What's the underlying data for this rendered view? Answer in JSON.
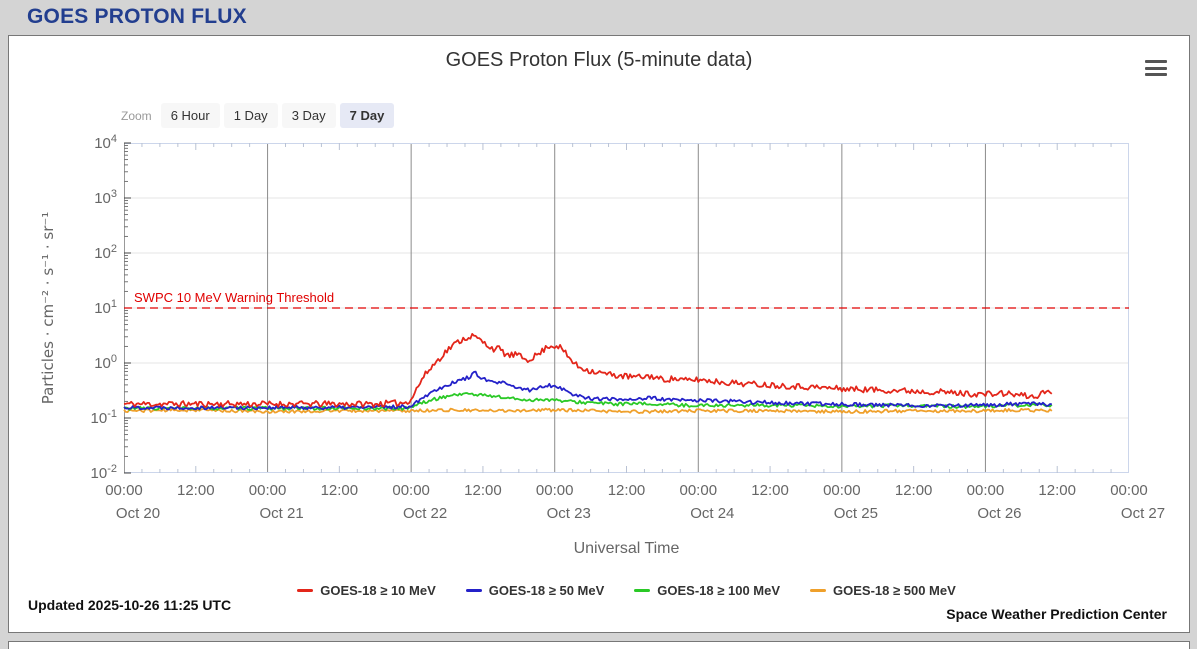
{
  "page": {
    "header_title": "GOES PROTON FLUX"
  },
  "chart": {
    "title": "GOES Proton Flux (5-minute data)",
    "zoom_label": "Zoom",
    "zoom_buttons": [
      {
        "label": "6 Hour",
        "selected": false
      },
      {
        "label": "1 Day",
        "selected": false
      },
      {
        "label": "3 Day",
        "selected": false
      },
      {
        "label": "7 Day",
        "selected": true
      }
    ],
    "updated": "Updated 2025-10-26 11:25 UTC",
    "credit": "Space Weather Prediction Center"
  },
  "chart_data": {
    "type": "line",
    "title": "GOES Proton Flux (5-minute data)",
    "xlabel": "Universal Time",
    "ylabel": "Particles · cm⁻² · s⁻¹ · sr⁻¹",
    "x_unit": "hours since Oct 20 00:00 UT",
    "x_range_hours": [
      0,
      168
    ],
    "y_log_range": [
      -2,
      4
    ],
    "grid": true,
    "legend_position": "bottom",
    "y_tick_exponents": [
      4,
      3,
      2,
      1,
      0,
      -1,
      -2
    ],
    "x_ticks": [
      {
        "hour": 0,
        "time": "00:00",
        "date": "Oct 20"
      },
      {
        "hour": 12,
        "time": "12:00"
      },
      {
        "hour": 24,
        "time": "00:00",
        "date": "Oct 21"
      },
      {
        "hour": 36,
        "time": "12:00"
      },
      {
        "hour": 48,
        "time": "00:00",
        "date": "Oct 22"
      },
      {
        "hour": 60,
        "time": "12:00"
      },
      {
        "hour": 72,
        "time": "00:00",
        "date": "Oct 23"
      },
      {
        "hour": 84,
        "time": "12:00"
      },
      {
        "hour": 96,
        "time": "00:00",
        "date": "Oct 24"
      },
      {
        "hour": 108,
        "time": "12:00"
      },
      {
        "hour": 120,
        "time": "00:00",
        "date": "Oct 25"
      },
      {
        "hour": 132,
        "time": "12:00"
      },
      {
        "hour": 144,
        "time": "00:00",
        "date": "Oct 26"
      },
      {
        "hour": 156,
        "time": "12:00"
      },
      {
        "hour": 168,
        "time": "00:00",
        "date": "Oct 27"
      }
    ],
    "threshold": {
      "value": 10,
      "label": "SWPC 10 MeV Warning Threshold",
      "color": "#e00000",
      "style": "dashed"
    },
    "series": [
      {
        "name": "GOES-18 ≥ 10 MeV",
        "color": "#e3261a",
        "noise_log10": 0.055,
        "seed": 11,
        "points": [
          [
            0,
            0.18
          ],
          [
            6,
            0.18
          ],
          [
            12,
            0.18
          ],
          [
            18,
            0.18
          ],
          [
            24,
            0.18
          ],
          [
            30,
            0.18
          ],
          [
            36,
            0.18
          ],
          [
            42,
            0.18
          ],
          [
            47,
            0.19
          ],
          [
            48,
            0.22
          ],
          [
            49,
            0.35
          ],
          [
            50,
            0.55
          ],
          [
            51,
            0.75
          ],
          [
            52,
            1.0
          ],
          [
            53,
            1.3
          ],
          [
            54,
            1.7
          ],
          [
            55,
            2.1
          ],
          [
            56,
            2.5
          ],
          [
            57,
            2.8
          ],
          [
            58,
            3.1
          ],
          [
            58.7,
            3.0
          ],
          [
            59.5,
            2.6
          ],
          [
            60.5,
            2.2
          ],
          [
            61.5,
            1.9
          ],
          [
            62,
            1.75
          ],
          [
            62.7,
            1.85
          ],
          [
            63.5,
            1.5
          ],
          [
            64.5,
            1.35
          ],
          [
            65.5,
            1.45
          ],
          [
            66.5,
            1.25
          ],
          [
            67.5,
            1.15
          ],
          [
            68.5,
            1.3
          ],
          [
            69.5,
            1.5
          ],
          [
            70.3,
            1.8
          ],
          [
            71,
            2.1
          ],
          [
            71.7,
            2.0
          ],
          [
            72.3,
            2.1
          ],
          [
            73,
            1.9
          ],
          [
            74,
            1.4
          ],
          [
            75,
            1.05
          ],
          [
            76,
            0.85
          ],
          [
            78,
            0.72
          ],
          [
            80,
            0.65
          ],
          [
            82,
            0.6
          ],
          [
            84,
            0.57
          ],
          [
            86,
            0.55
          ],
          [
            88,
            0.58
          ],
          [
            90,
            0.5
          ],
          [
            92,
            0.52
          ],
          [
            94,
            0.48
          ],
          [
            96,
            0.5
          ],
          [
            100,
            0.45
          ],
          [
            104,
            0.42
          ],
          [
            108,
            0.4
          ],
          [
            112,
            0.38
          ],
          [
            116,
            0.36
          ],
          [
            120,
            0.34
          ],
          [
            124,
            0.33
          ],
          [
            128,
            0.32
          ],
          [
            132,
            0.31
          ],
          [
            136,
            0.3
          ],
          [
            140,
            0.28
          ],
          [
            144,
            0.27
          ],
          [
            147,
            0.28
          ],
          [
            150,
            0.26
          ],
          [
            152,
            0.24
          ],
          [
            153.5,
            0.28
          ],
          [
            154.5,
            0.32
          ],
          [
            155.3,
            0.27
          ]
        ]
      },
      {
        "name": "GOES-18 ≥ 50 MeV",
        "color": "#2421c9",
        "noise_log10": 0.035,
        "seed": 22,
        "points": [
          [
            0,
            0.155
          ],
          [
            12,
            0.155
          ],
          [
            24,
            0.155
          ],
          [
            36,
            0.155
          ],
          [
            47,
            0.16
          ],
          [
            48,
            0.17
          ],
          [
            49,
            0.2
          ],
          [
            50,
            0.24
          ],
          [
            51,
            0.28
          ],
          [
            52,
            0.32
          ],
          [
            53,
            0.36
          ],
          [
            54,
            0.4
          ],
          [
            55,
            0.44
          ],
          [
            56,
            0.48
          ],
          [
            57,
            0.52
          ],
          [
            58,
            0.58
          ],
          [
            58.6,
            0.66
          ],
          [
            59.3,
            0.6
          ],
          [
            60,
            0.52
          ],
          [
            61,
            0.46
          ],
          [
            62,
            0.43
          ],
          [
            63,
            0.45
          ],
          [
            64,
            0.4
          ],
          [
            65,
            0.37
          ],
          [
            66,
            0.35
          ],
          [
            67,
            0.33
          ],
          [
            68,
            0.32
          ],
          [
            69,
            0.34
          ],
          [
            70,
            0.38
          ],
          [
            71,
            0.4
          ],
          [
            72,
            0.38
          ],
          [
            73,
            0.36
          ],
          [
            74,
            0.3
          ],
          [
            76,
            0.25
          ],
          [
            78,
            0.23
          ],
          [
            80,
            0.22
          ],
          [
            84,
            0.22
          ],
          [
            88,
            0.23
          ],
          [
            92,
            0.21
          ],
          [
            96,
            0.21
          ],
          [
            102,
            0.2
          ],
          [
            108,
            0.19
          ],
          [
            114,
            0.18
          ],
          [
            120,
            0.18
          ],
          [
            128,
            0.17
          ],
          [
            136,
            0.17
          ],
          [
            144,
            0.17
          ],
          [
            150,
            0.18
          ],
          [
            155.3,
            0.18
          ]
        ]
      },
      {
        "name": "GOES-18 ≥ 100 MeV",
        "color": "#2ac926",
        "noise_log10": 0.03,
        "seed": 33,
        "points": [
          [
            0,
            0.15
          ],
          [
            12,
            0.15
          ],
          [
            24,
            0.15
          ],
          [
            36,
            0.15
          ],
          [
            47,
            0.15
          ],
          [
            48,
            0.16
          ],
          [
            50,
            0.19
          ],
          [
            52,
            0.22
          ],
          [
            54,
            0.25
          ],
          [
            56,
            0.27
          ],
          [
            57,
            0.28
          ],
          [
            58,
            0.27
          ],
          [
            60,
            0.26
          ],
          [
            62,
            0.25
          ],
          [
            64,
            0.23
          ],
          [
            66,
            0.22
          ],
          [
            68,
            0.21
          ],
          [
            70,
            0.22
          ],
          [
            72,
            0.21
          ],
          [
            74,
            0.2
          ],
          [
            78,
            0.19
          ],
          [
            82,
            0.18
          ],
          [
            88,
            0.18
          ],
          [
            94,
            0.17
          ],
          [
            100,
            0.17
          ],
          [
            110,
            0.17
          ],
          [
            120,
            0.16
          ],
          [
            130,
            0.17
          ],
          [
            140,
            0.16
          ],
          [
            150,
            0.17
          ],
          [
            155.3,
            0.17
          ]
        ]
      },
      {
        "name": "GOES-18 ≥ 500 MeV",
        "color": "#efa02b",
        "noise_log10": 0.028,
        "seed": 44,
        "points": [
          [
            0,
            0.135
          ],
          [
            12,
            0.14
          ],
          [
            24,
            0.13
          ],
          [
            36,
            0.135
          ],
          [
            48,
            0.135
          ],
          [
            54,
            0.14
          ],
          [
            60,
            0.135
          ],
          [
            72,
            0.14
          ],
          [
            84,
            0.13
          ],
          [
            96,
            0.135
          ],
          [
            108,
            0.135
          ],
          [
            120,
            0.13
          ],
          [
            132,
            0.135
          ],
          [
            144,
            0.135
          ],
          [
            150,
            0.14
          ],
          [
            155.3,
            0.135
          ]
        ]
      }
    ]
  }
}
